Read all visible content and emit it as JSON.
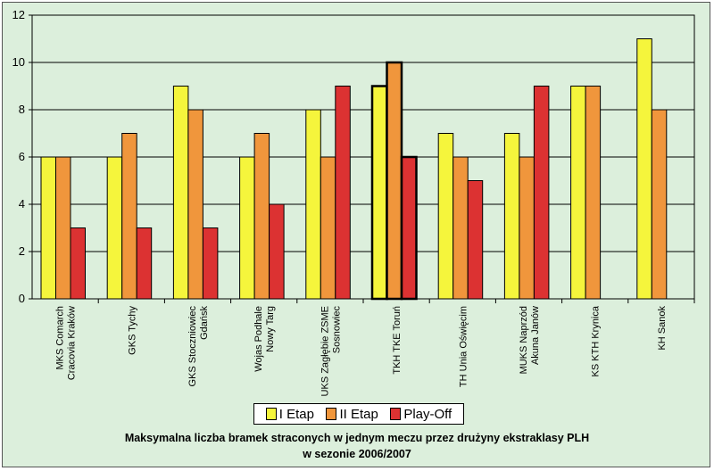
{
  "chart_data": {
    "type": "bar",
    "title_line1": "Maksymalna liczba bramek straconych w jednym meczu przez drużyny ekstraklasy PLH",
    "title_line2": "w sezonie 2006/2007",
    "categories": [
      [
        "MKS Comarch",
        "Cracovia Kraków"
      ],
      [
        "GKS Tychy"
      ],
      [
        "GKS Stoczniowiec",
        "Gdańsk"
      ],
      [
        "Wojas Podhale",
        "Nowy Targ"
      ],
      [
        "UKS Zagłębie ZSME",
        "Sosnowiec"
      ],
      [
        "TKH TKE Toruń"
      ],
      [
        "TH Unia Oświęcim"
      ],
      [
        "MUKS Naprzód",
        "Akuna Janów"
      ],
      [
        "KS KTH Krynica"
      ],
      [
        "KH Sanok"
      ]
    ],
    "series": [
      {
        "name": "I Etap",
        "color": "#f5f53c",
        "values": [
          6,
          6,
          9,
          6,
          8,
          9,
          7,
          7,
          9,
          11
        ]
      },
      {
        "name": "II Etap",
        "color": "#f0963c",
        "values": [
          6,
          7,
          8,
          7,
          6,
          10,
          6,
          6,
          9,
          8
        ]
      },
      {
        "name": "Play-Off",
        "color": "#dc3232",
        "values": [
          3,
          3,
          3,
          4,
          9,
          6,
          5,
          9,
          null,
          null
        ]
      }
    ],
    "highlight_category": 5,
    "ylim": [
      0,
      12
    ],
    "yticks": [
      0,
      2,
      4,
      6,
      8,
      10,
      12
    ],
    "grid": true,
    "legend_position": "bottom"
  }
}
